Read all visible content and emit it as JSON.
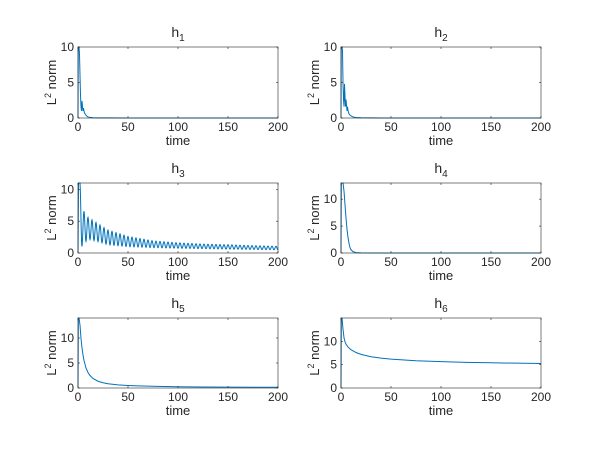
{
  "chart_data": [
    {
      "type": "line",
      "title": "h",
      "title_sub": "1",
      "xlabel": "time",
      "ylabel": "norm",
      "ylabel_base": "L",
      "ylabel_sup": "2",
      "xlim": [
        0,
        200
      ],
      "ylim": [
        0,
        10
      ],
      "xticks": [
        0,
        50,
        100,
        150,
        200
      ],
      "yticks": [
        0,
        5,
        10
      ],
      "color": "#0072BD",
      "series": [
        {
          "x": [
            0,
            0.2,
            0.5,
            1,
            1.5,
            2,
            2.5,
            3,
            3.5,
            4,
            4.5,
            5,
            5.5,
            6,
            6.5,
            7,
            8,
            9,
            10,
            12,
            15,
            20,
            30,
            50,
            100,
            150,
            200
          ],
          "y": [
            0,
            10.2,
            10.2,
            10.2,
            9.0,
            6.0,
            3.2,
            1.6,
            1.0,
            2.4,
            1.6,
            1.0,
            1.4,
            1.0,
            0.7,
            0.6,
            0.4,
            0.25,
            0.15,
            0.08,
            0.04,
            0.02,
            0.01,
            0.005,
            0.002,
            0.001,
            0.001
          ]
        }
      ]
    },
    {
      "type": "line",
      "title": "h",
      "title_sub": "2",
      "xlabel": "time",
      "ylabel": "norm",
      "ylabel_base": "L",
      "ylabel_sup": "2",
      "xlim": [
        0,
        200
      ],
      "ylim": [
        0,
        10
      ],
      "xticks": [
        0,
        50,
        100,
        150,
        200
      ],
      "yticks": [
        0,
        5,
        10
      ],
      "color": "#0072BD",
      "series": [
        {
          "x": [
            0,
            0.2,
            0.5,
            1,
            1.5,
            2,
            2.5,
            3,
            3.5,
            4,
            4.5,
            5,
            5.5,
            6,
            6.5,
            7,
            7.5,
            8,
            9,
            10,
            12,
            15,
            20,
            30,
            50,
            100,
            150,
            200
          ],
          "y": [
            0,
            10.2,
            10.2,
            10.2,
            9.5,
            5.0,
            2.6,
            1.6,
            4.8,
            3.0,
            1.6,
            2.6,
            1.8,
            1.0,
            1.6,
            1.1,
            0.8,
            0.6,
            0.4,
            0.3,
            0.15,
            0.07,
            0.03,
            0.01,
            0.005,
            0.002,
            0.001,
            0.001
          ]
        }
      ]
    },
    {
      "type": "line",
      "title": "h",
      "title_sub": "3",
      "xlabel": "time",
      "ylabel": "norm",
      "ylabel_base": "L",
      "ylabel_sup": "2",
      "xlim": [
        0,
        200
      ],
      "ylim": [
        0,
        11
      ],
      "xticks": [
        0,
        50,
        100,
        150,
        200
      ],
      "yticks": [
        0,
        5,
        10
      ],
      "color": "#0072BD",
      "oscillating": {
        "period": 4,
        "t0": 2,
        "env_upper": {
          "x": [
            2,
            5,
            10,
            20,
            30,
            50,
            75,
            100,
            125,
            150,
            175,
            200
          ],
          "y": [
            11,
            6.8,
            5.6,
            4.6,
            3.6,
            2.6,
            1.9,
            1.6,
            1.4,
            1.3,
            1.15,
            1.05
          ]
        },
        "env_lower": {
          "x": [
            2,
            5,
            10,
            20,
            30,
            50,
            75,
            100,
            125,
            150,
            175,
            200
          ],
          "y": [
            0.5,
            1.3,
            2.2,
            1.8,
            1.3,
            1.0,
            0.85,
            0.75,
            0.68,
            0.62,
            0.56,
            0.5
          ]
        }
      },
      "series": [
        {
          "x": [
            0,
            0.5,
            1,
            1.5,
            2
          ],
          "y": [
            0,
            11,
            11,
            11,
            11
          ]
        }
      ]
    },
    {
      "type": "line",
      "title": "h",
      "title_sub": "4",
      "xlabel": "time",
      "ylabel": "norm",
      "ylabel_base": "L",
      "ylabel_sup": "2",
      "xlim": [
        0,
        200
      ],
      "ylim": [
        0,
        13
      ],
      "xticks": [
        0,
        50,
        100,
        150,
        200
      ],
      "yticks": [
        0,
        5,
        10
      ],
      "color": "#0072BD",
      "series": [
        {
          "x": [
            0,
            0.3,
            1,
            2,
            3,
            4,
            5,
            6,
            7,
            8,
            9,
            10,
            12,
            15,
            20,
            30,
            50,
            100,
            150,
            200
          ],
          "y": [
            0,
            13,
            13,
            13,
            11.5,
            9.0,
            6.5,
            4.4,
            2.9,
            1.8,
            1.0,
            0.6,
            0.25,
            0.08,
            0.02,
            0.005,
            0.002,
            0.001,
            0.001,
            0.001
          ]
        }
      ]
    },
    {
      "type": "line",
      "title": "h",
      "title_sub": "5",
      "xlabel": "time",
      "ylabel": "norm",
      "ylabel_base": "L",
      "ylabel_sup": "2",
      "xlim": [
        0,
        200
      ],
      "ylim": [
        0,
        14
      ],
      "xticks": [
        0,
        50,
        100,
        150,
        200
      ],
      "yticks": [
        0,
        5,
        10
      ],
      "color": "#0072BD",
      "series": [
        {
          "x": [
            0,
            0.3,
            1,
            2,
            3,
            4,
            5,
            6,
            8,
            10,
            12,
            15,
            20,
            25,
            30,
            40,
            50,
            60,
            80,
            100,
            125,
            150,
            175,
            200
          ],
          "y": [
            0,
            14,
            14,
            12.6,
            9.9,
            8.0,
            6.6,
            5.5,
            4.0,
            3.1,
            2.5,
            1.9,
            1.35,
            1.05,
            0.85,
            0.62,
            0.5,
            0.42,
            0.32,
            0.26,
            0.21,
            0.18,
            0.15,
            0.14
          ]
        }
      ]
    },
    {
      "type": "line",
      "title": "h",
      "title_sub": "6",
      "xlabel": "time",
      "ylabel": "norm",
      "ylabel_base": "L",
      "ylabel_sup": "2",
      "xlim": [
        0,
        200
      ],
      "ylim": [
        0,
        15
      ],
      "xticks": [
        0,
        50,
        100,
        150,
        200
      ],
      "yticks": [
        0,
        5,
        10
      ],
      "color": "#0072BD",
      "series": [
        {
          "x": [
            0,
            0.3,
            1,
            2,
            3,
            4,
            5,
            7,
            10,
            15,
            20,
            30,
            40,
            50,
            75,
            100,
            125,
            150,
            175,
            200
          ],
          "y": [
            0,
            15,
            15,
            12.6,
            10.8,
            9.9,
            9.4,
            8.8,
            8.2,
            7.6,
            7.2,
            6.7,
            6.4,
            6.2,
            5.85,
            5.65,
            5.5,
            5.4,
            5.32,
            5.25
          ]
        }
      ]
    }
  ]
}
